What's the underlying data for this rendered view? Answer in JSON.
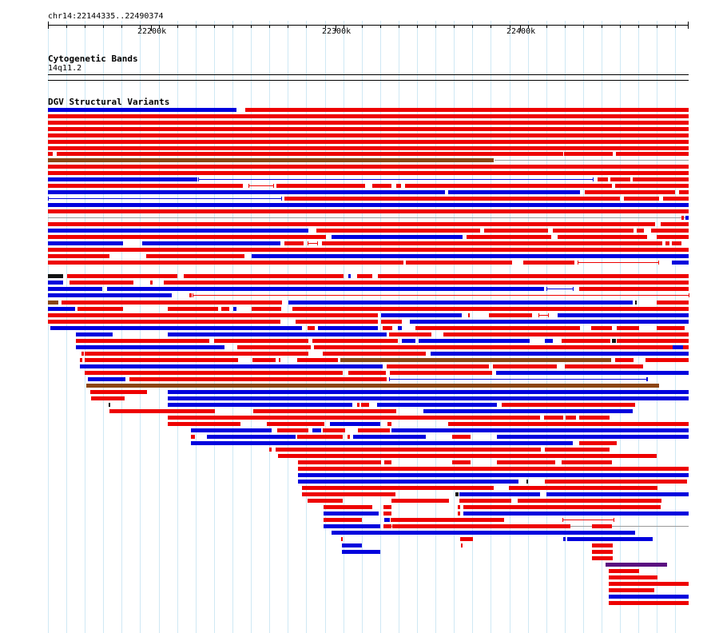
{
  "ruler": {
    "location": "chr14:22144335..22490374",
    "ticks": [
      "22200k",
      "22300k",
      "22400k"
    ]
  },
  "tracks": {
    "cytoband_title": "Cytogenetic Bands",
    "cytoband_label": "14q11.2",
    "dgv_title": "DGV Structural Variants"
  },
  "colors": {
    "loss": "#ee0000",
    "gain": "#0000dd",
    "gain_loss": "#8b4513",
    "inversion": "#5a1080",
    "other": "#111111",
    "gridline": "#cfe8f4"
  }
}
